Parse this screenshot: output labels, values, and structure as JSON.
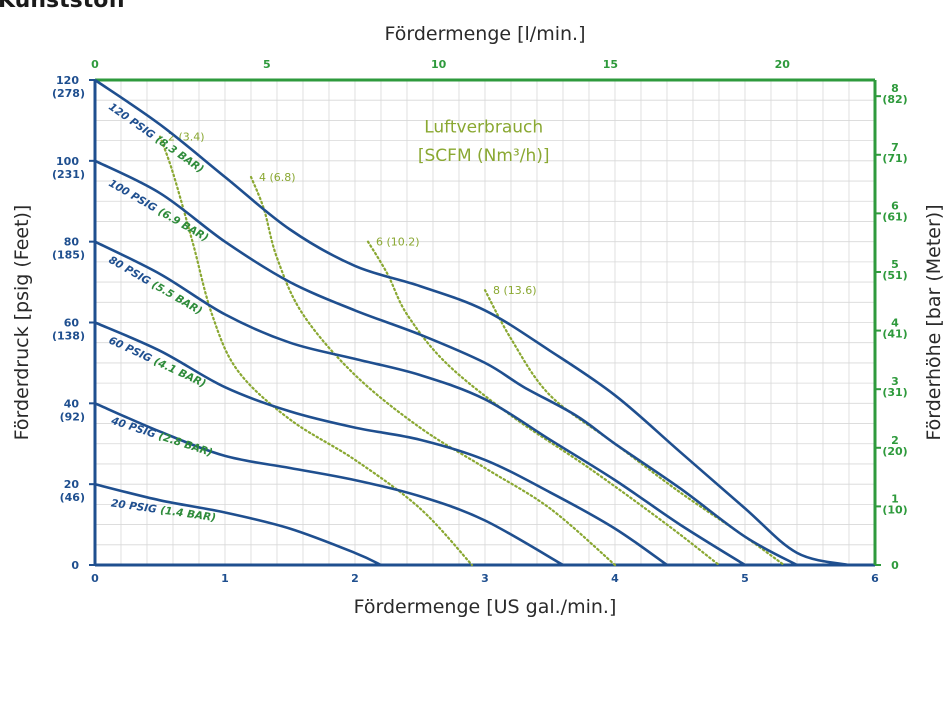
{
  "page_title": "Kunststoff",
  "chart_data": {
    "type": "line",
    "xlabel": "Fördermenge [US gal./min.]",
    "x2label": "Fördermenge [l/min.]",
    "ylabel": "Förderdruck [psig (Feet)]",
    "y2label": "Förderhöhe [bar (Meter)]",
    "xlim": [
      0,
      6
    ],
    "ylim": [
      0,
      120
    ],
    "x2lim": [
      0,
      22.7
    ],
    "grid": true,
    "colors": {
      "curve": "#1f4f8f",
      "axis_green": "#2e9a3c",
      "air": "#8aa832",
      "bar_label": "#2e8b3a",
      "grid": "#d8d8d8"
    },
    "x_ticks": [
      "0",
      "1",
      "2",
      "3",
      "4",
      "5",
      "6"
    ],
    "x2_ticks": [
      {
        "value": 0,
        "label": "0"
      },
      {
        "value": 5,
        "label": "5"
      },
      {
        "value": 10,
        "label": "10"
      },
      {
        "value": 15,
        "label": "15"
      },
      {
        "value": 20,
        "label": "20"
      }
    ],
    "y_ticks": [
      {
        "value": 0,
        "label": "0",
        "sub": ""
      },
      {
        "value": 20,
        "label": "20",
        "sub": "(46)"
      },
      {
        "value": 40,
        "label": "40",
        "sub": "(92)"
      },
      {
        "value": 60,
        "label": "60",
        "sub": "(138)"
      },
      {
        "value": 80,
        "label": "80",
        "sub": "(185)"
      },
      {
        "value": 100,
        "label": "100",
        "sub": "(231)"
      },
      {
        "value": 120,
        "label": "120",
        "sub": "(278)"
      }
    ],
    "y2_ticks": [
      {
        "value": 0,
        "label": "0",
        "sub": ""
      },
      {
        "value": 14.5,
        "label": "1",
        "sub": "(10)"
      },
      {
        "value": 29,
        "label": "2",
        "sub": "(20)"
      },
      {
        "value": 43.5,
        "label": "3",
        "sub": "(31)"
      },
      {
        "value": 58,
        "label": "4",
        "sub": "(41)"
      },
      {
        "value": 72.5,
        "label": "5",
        "sub": "(51)"
      },
      {
        "value": 87,
        "label": "6",
        "sub": "(61)"
      },
      {
        "value": 101.5,
        "label": "7",
        "sub": "(71)"
      },
      {
        "value": 116,
        "label": "8",
        "sub": "(82)"
      }
    ],
    "series": [
      {
        "name": "120 PSIG",
        "bar": "(8.3 BAR)",
        "label_rotation": 35,
        "label_at": [
          0.1,
          113
        ],
        "points": [
          [
            0,
            120
          ],
          [
            0.5,
            109
          ],
          [
            1.0,
            96
          ],
          [
            1.5,
            83
          ],
          [
            2.0,
            74
          ],
          [
            2.5,
            69
          ],
          [
            3.0,
            63
          ],
          [
            3.5,
            53
          ],
          [
            4.0,
            42
          ],
          [
            4.5,
            28
          ],
          [
            5.0,
            14
          ],
          [
            5.4,
            3
          ],
          [
            5.8,
            0
          ]
        ]
      },
      {
        "name": "100 PSIG",
        "bar": "(6.9 BAR)",
        "label_rotation": 30,
        "label_at": [
          0.1,
          94
        ],
        "points": [
          [
            0,
            100
          ],
          [
            0.5,
            92
          ],
          [
            1.0,
            80
          ],
          [
            1.5,
            70
          ],
          [
            2.0,
            63
          ],
          [
            2.5,
            57
          ],
          [
            3.0,
            50
          ],
          [
            3.3,
            44
          ],
          [
            3.7,
            37
          ],
          [
            4.0,
            30
          ],
          [
            4.5,
            19
          ],
          [
            5.0,
            7
          ],
          [
            5.4,
            0
          ]
        ]
      },
      {
        "name": "80 PSIG",
        "bar": "(5.5 BAR)",
        "label_rotation": 30,
        "label_at": [
          0.1,
          75
        ],
        "points": [
          [
            0,
            80
          ],
          [
            0.5,
            72
          ],
          [
            1.0,
            62
          ],
          [
            1.5,
            55
          ],
          [
            2.0,
            51
          ],
          [
            2.5,
            47
          ],
          [
            3.0,
            41
          ],
          [
            3.5,
            31
          ],
          [
            4.0,
            21
          ],
          [
            4.5,
            10
          ],
          [
            5.0,
            0
          ]
        ]
      },
      {
        "name": "60 PSIG",
        "bar": "(4.1 BAR)",
        "label_rotation": 25,
        "label_at": [
          0.1,
          55
        ],
        "points": [
          [
            0,
            60
          ],
          [
            0.5,
            53
          ],
          [
            1.0,
            44
          ],
          [
            1.5,
            38
          ],
          [
            2.0,
            34
          ],
          [
            2.5,
            31
          ],
          [
            3.0,
            26
          ],
          [
            3.5,
            18
          ],
          [
            4.0,
            9
          ],
          [
            4.4,
            0
          ]
        ]
      },
      {
        "name": "40 PSIG",
        "bar": "(2.8 BAR)",
        "label_rotation": 18,
        "label_at": [
          0.12,
          35
        ],
        "points": [
          [
            0,
            40
          ],
          [
            0.5,
            33
          ],
          [
            1.0,
            27
          ],
          [
            1.5,
            24
          ],
          [
            2.0,
            21
          ],
          [
            2.5,
            17
          ],
          [
            3.0,
            11
          ],
          [
            3.6,
            0
          ]
        ]
      },
      {
        "name": "20 PSIG",
        "bar": "(1.4 BAR)",
        "label_rotation": 8,
        "label_at": [
          0.12,
          14.5
        ],
        "points": [
          [
            0,
            20
          ],
          [
            0.5,
            16
          ],
          [
            1.0,
            13
          ],
          [
            1.5,
            9
          ],
          [
            2.0,
            3
          ],
          [
            2.2,
            0
          ]
        ]
      }
    ],
    "air_title": [
      "Luftverbrauch",
      "[SCFM (Nm³/h)]"
    ],
    "air_series": [
      {
        "name": "2 (3.4)",
        "points": [
          [
            0.5,
            106
          ],
          [
            0.6,
            97
          ],
          [
            0.75,
            80
          ],
          [
            0.9,
            62
          ],
          [
            1.1,
            48
          ],
          [
            1.5,
            36
          ],
          [
            2.0,
            26
          ],
          [
            2.5,
            14
          ],
          [
            2.9,
            0
          ]
        ]
      },
      {
        "name": "4 (6.8)",
        "points": [
          [
            1.2,
            96
          ],
          [
            1.3,
            88
          ],
          [
            1.4,
            76
          ],
          [
            1.6,
            62
          ],
          [
            2.0,
            47
          ],
          [
            2.5,
            34
          ],
          [
            3.0,
            24
          ],
          [
            3.5,
            14
          ],
          [
            4.0,
            0
          ]
        ]
      },
      {
        "name": "6 (10.2)",
        "points": [
          [
            2.1,
            80
          ],
          [
            2.25,
            72
          ],
          [
            2.4,
            62
          ],
          [
            2.7,
            50
          ],
          [
            3.2,
            37
          ],
          [
            3.8,
            24
          ],
          [
            4.4,
            10
          ],
          [
            4.8,
            0
          ]
        ]
      },
      {
        "name": "8 (13.6)",
        "points": [
          [
            3.0,
            68
          ],
          [
            3.2,
            56
          ],
          [
            3.5,
            42
          ],
          [
            4.0,
            30
          ],
          [
            4.5,
            18
          ],
          [
            5.0,
            7
          ],
          [
            5.3,
            0
          ]
        ]
      }
    ]
  }
}
